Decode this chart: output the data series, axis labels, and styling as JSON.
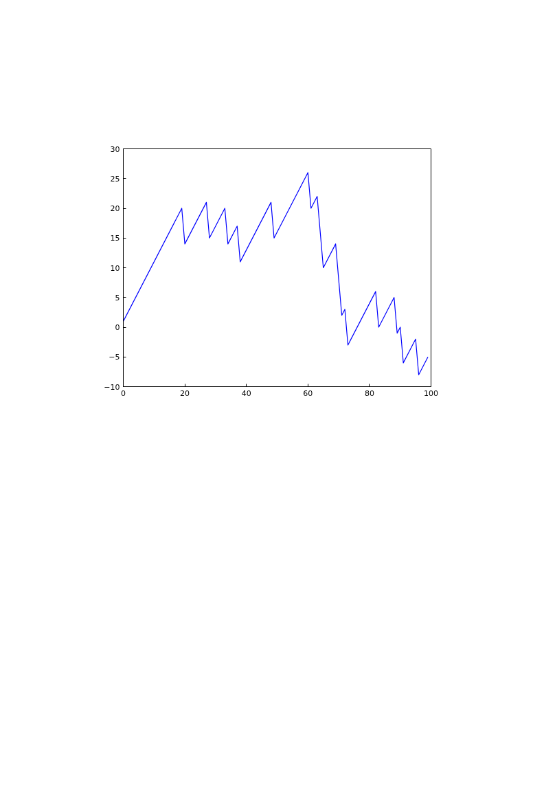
{
  "chart_data": {
    "type": "line",
    "x": [
      0,
      19,
      20,
      27,
      28,
      33,
      34,
      37,
      38,
      48,
      49,
      60,
      61,
      63,
      65,
      69,
      71,
      72,
      73,
      82,
      83,
      88,
      89,
      90,
      91,
      95,
      96,
      99
    ],
    "series": [
      {
        "color": "#0000ff",
        "values": [
          1,
          20,
          14,
          21,
          15,
          20,
          14,
          17,
          11,
          21,
          15,
          26,
          20,
          22,
          10,
          14,
          2,
          3,
          -3,
          6,
          0,
          5,
          -1,
          0,
          -6,
          -2,
          -8,
          -5
        ]
      }
    ],
    "xlim": [
      0,
      100
    ],
    "ylim": [
      -10,
      30
    ],
    "xticks": [
      0,
      20,
      40,
      60,
      80,
      100
    ],
    "yticks": [
      {
        "value": -10,
        "label": "−10"
      },
      {
        "value": -5,
        "label": "−5"
      },
      0,
      5,
      10,
      15,
      20,
      25,
      30
    ],
    "grid": false
  }
}
